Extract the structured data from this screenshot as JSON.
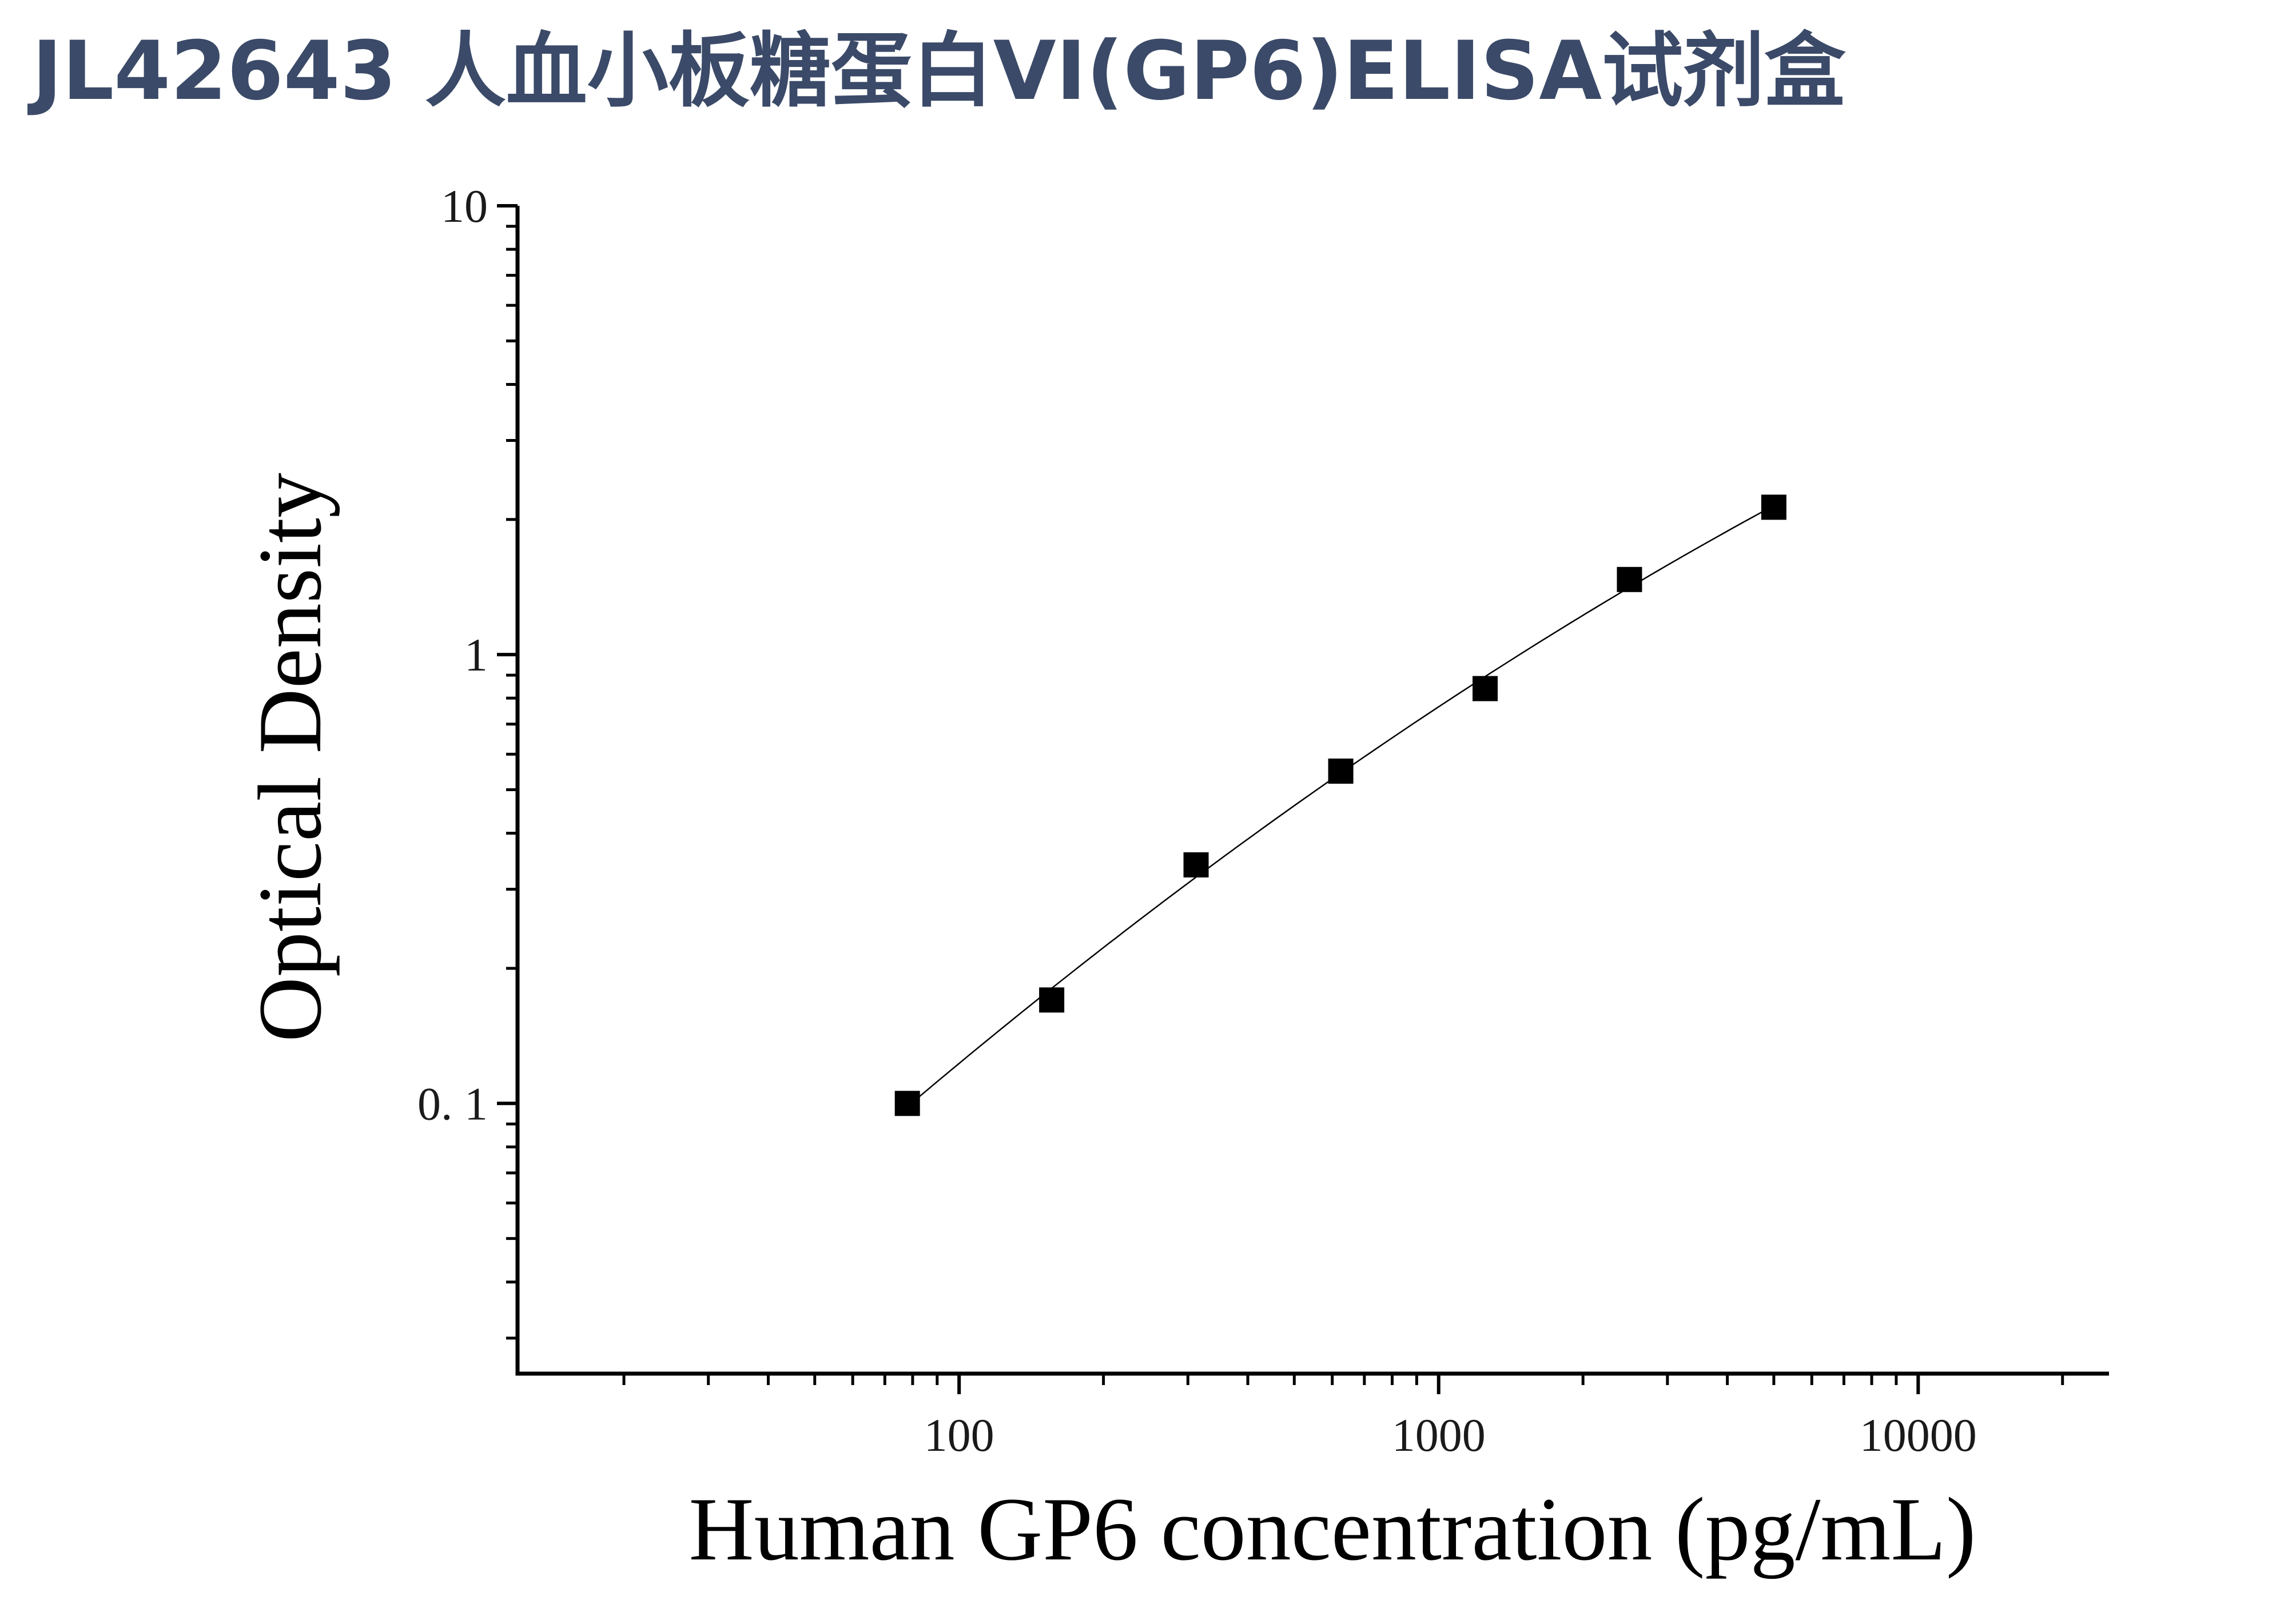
{
  "title": "JL42643 人血小板糖蛋白VI(GP6)ELISA试剂盒",
  "colors": {
    "title": "#3b4a68",
    "axis": "#000000",
    "marker": "#000000",
    "curve": "#000000"
  },
  "chart_data": {
    "type": "scatter",
    "title": "",
    "xlabel": "Human GP6 concentration (pg/mL)",
    "ylabel": "Optical Density",
    "x_scale": "log",
    "y_scale": "log",
    "xlim": [
      12,
      25000
    ],
    "ylim": [
      0.025,
      10
    ],
    "x_ticks": [
      {
        "value": 100,
        "label": "100"
      },
      {
        "value": 1000,
        "label": "1000"
      },
      {
        "value": 10000,
        "label": "10000"
      }
    ],
    "y_ticks": [
      {
        "value": 0.1,
        "label": "0. 1"
      },
      {
        "value": 1,
        "label": "1"
      },
      {
        "value": 10,
        "label": "10"
      }
    ],
    "grid": false,
    "legend": "none",
    "series": [
      {
        "marker": "square",
        "fit_line": true,
        "x": [
          78,
          156,
          312,
          625,
          1250,
          2500,
          5000
        ],
        "y": [
          0.1,
          0.17,
          0.34,
          0.55,
          0.84,
          1.47,
          2.13
        ]
      }
    ]
  }
}
